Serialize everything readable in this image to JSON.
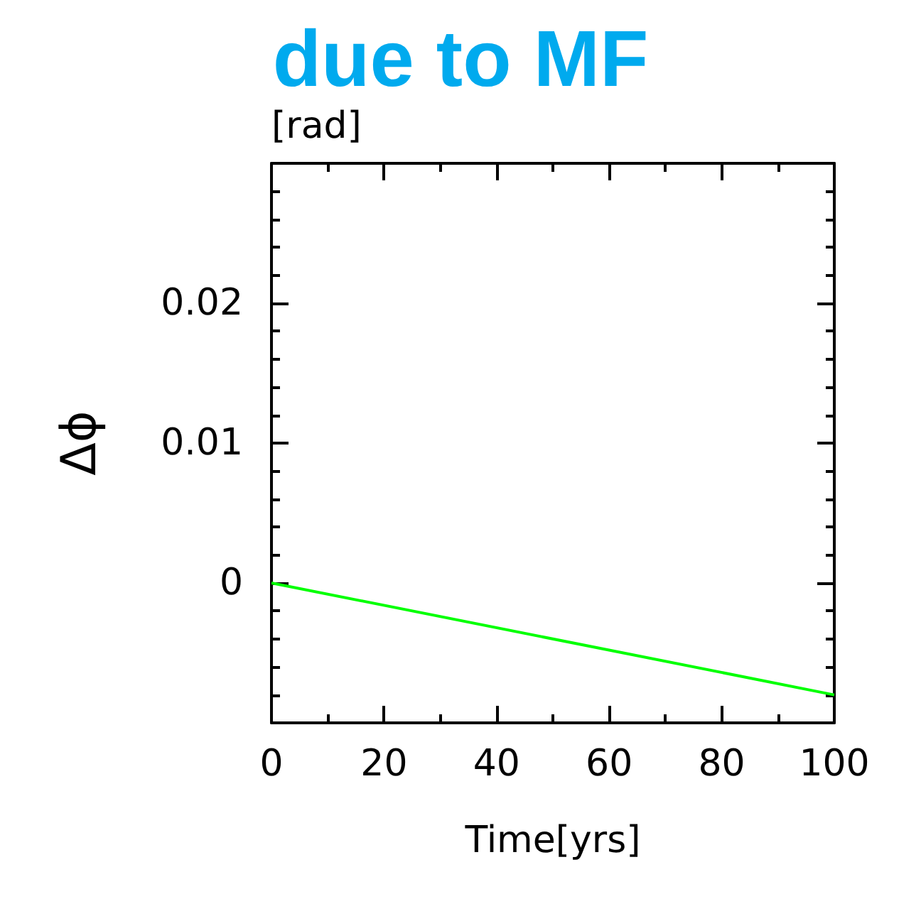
{
  "chart_data": {
    "type": "line",
    "title": "due to MF",
    "xlabel": "Time[yrs]",
    "ylabel": "Δϕ",
    "annotations": [
      "[rad]"
    ],
    "x": [
      0,
      100
    ],
    "series": [
      {
        "color": "#00ff00",
        "values": [
          0,
          -0.008
        ]
      }
    ],
    "xlim": [
      0,
      100
    ],
    "xticks": [
      0,
      20,
      40,
      60,
      80,
      100
    ],
    "ylim": [
      -0.01,
      0.03
    ],
    "yticks": [
      0,
      0.01,
      0.02
    ],
    "marker": "none",
    "line_style": "solid"
  }
}
